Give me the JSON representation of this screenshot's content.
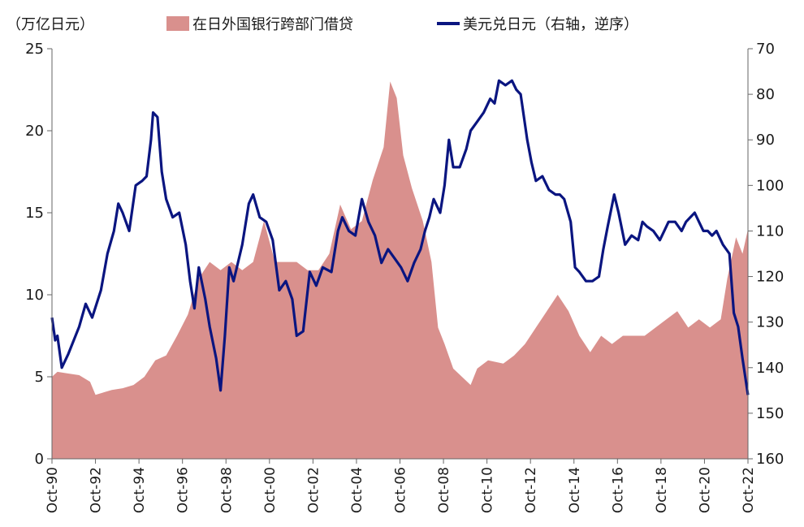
{
  "chart_data": {
    "type": "area+line",
    "unit_label": "（万亿日元）",
    "colors": {
      "area": "#d9908d",
      "line": "#0a1580",
      "axis": "#666666"
    },
    "left_axis": {
      "ticks": [
        "0",
        "5",
        "10",
        "15",
        "20",
        "25"
      ],
      "ylim": [
        0,
        25
      ]
    },
    "right_axis": {
      "ticks": [
        "70",
        "80",
        "90",
        "100",
        "110",
        "120",
        "130",
        "140",
        "150",
        "160"
      ],
      "ylim": [
        70,
        160
      ],
      "inverted": true
    },
    "x_ticks": [
      "Oct-90",
      "Oct-92",
      "Oct-94",
      "Oct-96",
      "Oct-98",
      "Oct-00",
      "Oct-02",
      "Oct-04",
      "Oct-06",
      "Oct-08",
      "Oct-10",
      "Oct-12",
      "Oct-14",
      "Oct-16",
      "Oct-18",
      "Oct-20",
      "Oct-22"
    ],
    "x_range": [
      1990.75,
      2022.75
    ],
    "series": [
      {
        "name": "在日外国银行跨部门借贷",
        "type": "area",
        "axis": "left",
        "points": [
          [
            1990.75,
            5.0
          ],
          [
            1991.0,
            5.3
          ],
          [
            1991.5,
            5.2
          ],
          [
            1992.0,
            5.1
          ],
          [
            1992.5,
            4.7
          ],
          [
            1992.75,
            3.9
          ],
          [
            1993.0,
            4.0
          ],
          [
            1993.5,
            4.2
          ],
          [
            1994.0,
            4.3
          ],
          [
            1994.5,
            4.5
          ],
          [
            1995.0,
            5.0
          ],
          [
            1995.5,
            6.0
          ],
          [
            1996.0,
            6.3
          ],
          [
            1996.5,
            7.5
          ],
          [
            1997.0,
            8.8
          ],
          [
            1997.5,
            11.0
          ],
          [
            1998.0,
            12.0
          ],
          [
            1998.5,
            11.5
          ],
          [
            1999.0,
            12.0
          ],
          [
            1999.5,
            11.5
          ],
          [
            2000.0,
            12.0
          ],
          [
            2000.3,
            13.5
          ],
          [
            2000.5,
            14.5
          ],
          [
            2001.0,
            12.0
          ],
          [
            2001.5,
            12.0
          ],
          [
            2002.0,
            12.0
          ],
          [
            2002.5,
            11.5
          ],
          [
            2003.0,
            11.5
          ],
          [
            2003.5,
            12.5
          ],
          [
            2004.0,
            15.5
          ],
          [
            2004.5,
            14.0
          ],
          [
            2005.0,
            14.5
          ],
          [
            2005.5,
            17.0
          ],
          [
            2006.0,
            19.0
          ],
          [
            2006.3,
            23.0
          ],
          [
            2006.6,
            22.0
          ],
          [
            2006.9,
            18.5
          ],
          [
            2007.3,
            16.5
          ],
          [
            2007.8,
            14.5
          ],
          [
            2008.2,
            12.0
          ],
          [
            2008.5,
            8.0
          ],
          [
            2008.8,
            7.0
          ],
          [
            2009.2,
            5.5
          ],
          [
            2009.6,
            5.0
          ],
          [
            2010.0,
            4.5
          ],
          [
            2010.3,
            5.5
          ],
          [
            2010.8,
            6.0
          ],
          [
            2011.5,
            5.8
          ],
          [
            2012.0,
            6.3
          ],
          [
            2012.5,
            7.0
          ],
          [
            2013.0,
            8.0
          ],
          [
            2013.5,
            9.0
          ],
          [
            2014.0,
            10.0
          ],
          [
            2014.5,
            9.0
          ],
          [
            2015.0,
            7.5
          ],
          [
            2015.5,
            6.5
          ],
          [
            2016.0,
            7.5
          ],
          [
            2016.5,
            7.0
          ],
          [
            2017.0,
            7.5
          ],
          [
            2017.5,
            7.5
          ],
          [
            2018.0,
            7.5
          ],
          [
            2018.5,
            8.0
          ],
          [
            2019.0,
            8.5
          ],
          [
            2019.5,
            9.0
          ],
          [
            2020.0,
            8.0
          ],
          [
            2020.5,
            8.5
          ],
          [
            2021.0,
            8.0
          ],
          [
            2021.5,
            8.5
          ],
          [
            2021.8,
            11.0
          ],
          [
            2022.2,
            13.5
          ],
          [
            2022.5,
            12.5
          ],
          [
            2022.75,
            14.0
          ]
        ]
      },
      {
        "name": "美元兑日元（右轴，逆序）",
        "type": "line",
        "axis": "right",
        "points": [
          [
            1990.75,
            129
          ],
          [
            1990.9,
            134
          ],
          [
            1991.0,
            133
          ],
          [
            1991.2,
            140
          ],
          [
            1991.5,
            137
          ],
          [
            1992.0,
            131
          ],
          [
            1992.3,
            126
          ],
          [
            1992.6,
            129
          ],
          [
            1993.0,
            123
          ],
          [
            1993.3,
            115
          ],
          [
            1993.6,
            110
          ],
          [
            1993.8,
            104
          ],
          [
            1994.0,
            106
          ],
          [
            1994.3,
            110
          ],
          [
            1994.6,
            100
          ],
          [
            1994.9,
            99
          ],
          [
            1995.1,
            98
          ],
          [
            1995.3,
            90
          ],
          [
            1995.4,
            84
          ],
          [
            1995.6,
            85
          ],
          [
            1995.8,
            97
          ],
          [
            1996.0,
            103
          ],
          [
            1996.3,
            107
          ],
          [
            1996.6,
            106
          ],
          [
            1996.9,
            113
          ],
          [
            1997.1,
            121
          ],
          [
            1997.3,
            127
          ],
          [
            1997.5,
            118
          ],
          [
            1997.8,
            125
          ],
          [
            1998.0,
            131
          ],
          [
            1998.3,
            138
          ],
          [
            1998.5,
            145
          ],
          [
            1998.7,
            133
          ],
          [
            1998.9,
            118
          ],
          [
            1999.1,
            121
          ],
          [
            1999.5,
            113
          ],
          [
            1999.8,
            104
          ],
          [
            2000.0,
            102
          ],
          [
            2000.3,
            107
          ],
          [
            2000.6,
            108
          ],
          [
            2000.9,
            112
          ],
          [
            2001.2,
            123
          ],
          [
            2001.5,
            121
          ],
          [
            2001.8,
            125
          ],
          [
            2002.0,
            133
          ],
          [
            2002.3,
            132
          ],
          [
            2002.6,
            119
          ],
          [
            2002.9,
            122
          ],
          [
            2003.2,
            118
          ],
          [
            2003.6,
            119
          ],
          [
            2003.9,
            110
          ],
          [
            2004.1,
            107
          ],
          [
            2004.4,
            110
          ],
          [
            2004.7,
            111
          ],
          [
            2005.0,
            103
          ],
          [
            2005.3,
            108
          ],
          [
            2005.6,
            111
          ],
          [
            2005.9,
            117
          ],
          [
            2006.2,
            114
          ],
          [
            2006.5,
            116
          ],
          [
            2006.8,
            118
          ],
          [
            2007.1,
            121
          ],
          [
            2007.4,
            117
          ],
          [
            2007.7,
            114
          ],
          [
            2007.9,
            110
          ],
          [
            2008.1,
            107
          ],
          [
            2008.3,
            103
          ],
          [
            2008.6,
            106
          ],
          [
            2008.8,
            100
          ],
          [
            2009.0,
            90
          ],
          [
            2009.2,
            96
          ],
          [
            2009.5,
            96
          ],
          [
            2009.8,
            92
          ],
          [
            2010.0,
            88
          ],
          [
            2010.3,
            86
          ],
          [
            2010.6,
            84
          ],
          [
            2010.9,
            81
          ],
          [
            2011.1,
            82
          ],
          [
            2011.3,
            77
          ],
          [
            2011.6,
            78
          ],
          [
            2011.9,
            77
          ],
          [
            2012.1,
            79
          ],
          [
            2012.3,
            80
          ],
          [
            2012.6,
            90
          ],
          [
            2012.8,
            95
          ],
          [
            2013.0,
            99
          ],
          [
            2013.3,
            98
          ],
          [
            2013.6,
            101
          ],
          [
            2013.9,
            102
          ],
          [
            2014.1,
            102
          ],
          [
            2014.3,
            103
          ],
          [
            2014.6,
            108
          ],
          [
            2014.8,
            118
          ],
          [
            2015.0,
            119
          ],
          [
            2015.3,
            121
          ],
          [
            2015.6,
            121
          ],
          [
            2015.9,
            120
          ],
          [
            2016.1,
            114
          ],
          [
            2016.3,
            109
          ],
          [
            2016.6,
            102
          ],
          [
            2016.8,
            106
          ],
          [
            2017.1,
            113
          ],
          [
            2017.4,
            111
          ],
          [
            2017.7,
            112
          ],
          [
            2017.9,
            108
          ],
          [
            2018.1,
            109
          ],
          [
            2018.4,
            110
          ],
          [
            2018.7,
            112
          ],
          [
            2018.9,
            110
          ],
          [
            2019.1,
            108
          ],
          [
            2019.4,
            108
          ],
          [
            2019.7,
            110
          ],
          [
            2019.9,
            108
          ],
          [
            2020.1,
            107
          ],
          [
            2020.3,
            106
          ],
          [
            2020.5,
            108
          ],
          [
            2020.7,
            110
          ],
          [
            2020.9,
            110
          ],
          [
            2021.1,
            111
          ],
          [
            2021.3,
            110
          ],
          [
            2021.6,
            113
          ],
          [
            2021.9,
            115
          ],
          [
            2022.1,
            128
          ],
          [
            2022.3,
            131
          ],
          [
            2022.5,
            138
          ],
          [
            2022.75,
            146
          ]
        ]
      }
    ]
  }
}
